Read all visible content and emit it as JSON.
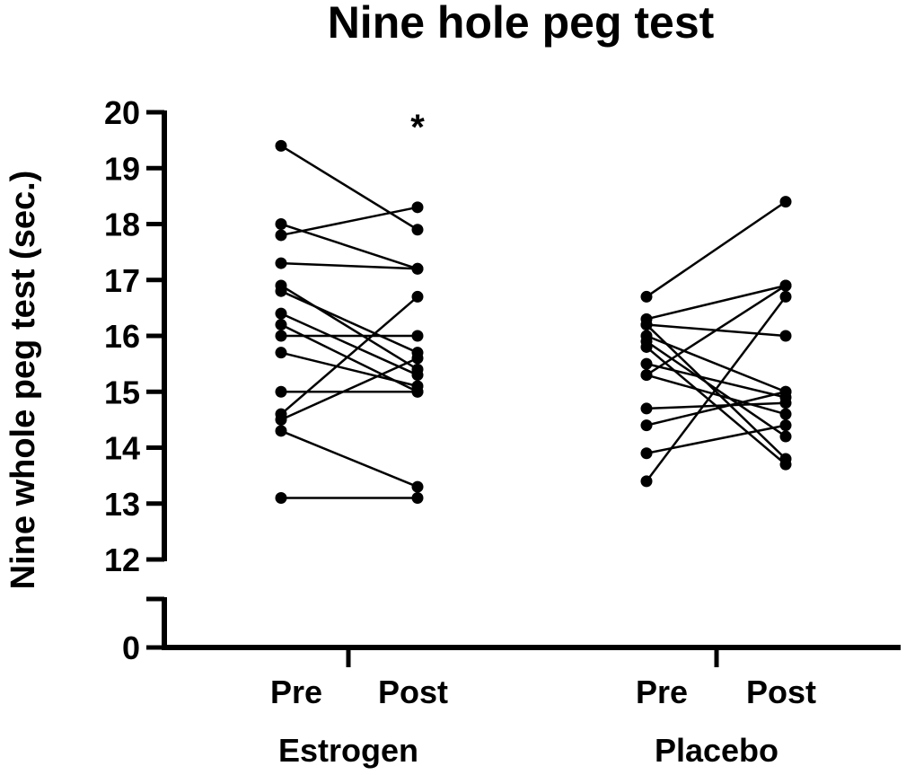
{
  "chart_data": {
    "type": "scatter",
    "title": "Nine hole peg test",
    "ylabel": "Nine whole peg test (sec.)",
    "xlabel": "",
    "ylim": [
      12,
      20
    ],
    "yticks": [
      "12",
      "13",
      "14",
      "15",
      "16",
      "17",
      "18",
      "19",
      "20"
    ],
    "y_break_tick": "0",
    "grid": false,
    "legend": "none",
    "groups": [
      {
        "name": "Estrogen",
        "timepoints": [
          "Pre",
          "Post"
        ],
        "annotation": "*",
        "pairs": [
          [
            19.4,
            17.9
          ],
          [
            18.0,
            17.2
          ],
          [
            17.8,
            18.3
          ],
          [
            17.3,
            17.2
          ],
          [
            16.9,
            15.4
          ],
          [
            16.8,
            15.7
          ],
          [
            16.4,
            15.3
          ],
          [
            16.2,
            15.0
          ],
          [
            16.0,
            16.0
          ],
          [
            15.7,
            15.1
          ],
          [
            15.0,
            15.0
          ],
          [
            14.6,
            16.7
          ],
          [
            14.5,
            15.6
          ],
          [
            14.3,
            13.3
          ],
          [
            13.1,
            13.1
          ]
        ]
      },
      {
        "name": "Placebo",
        "timepoints": [
          "Pre",
          "Post"
        ],
        "annotation": "",
        "pairs": [
          [
            16.7,
            18.4
          ],
          [
            16.3,
            16.9
          ],
          [
            16.2,
            16.0
          ],
          [
            16.2,
            13.8
          ],
          [
            16.0,
            15.0
          ],
          [
            15.9,
            14.2
          ],
          [
            15.8,
            13.7
          ],
          [
            15.5,
            14.9
          ],
          [
            15.3,
            14.6
          ],
          [
            15.3,
            16.9
          ],
          [
            14.7,
            14.8
          ],
          [
            14.4,
            15.0
          ],
          [
            13.9,
            14.4
          ],
          [
            13.4,
            16.7
          ]
        ]
      }
    ],
    "colors": {
      "line": "#000000",
      "point": "#000000"
    }
  }
}
